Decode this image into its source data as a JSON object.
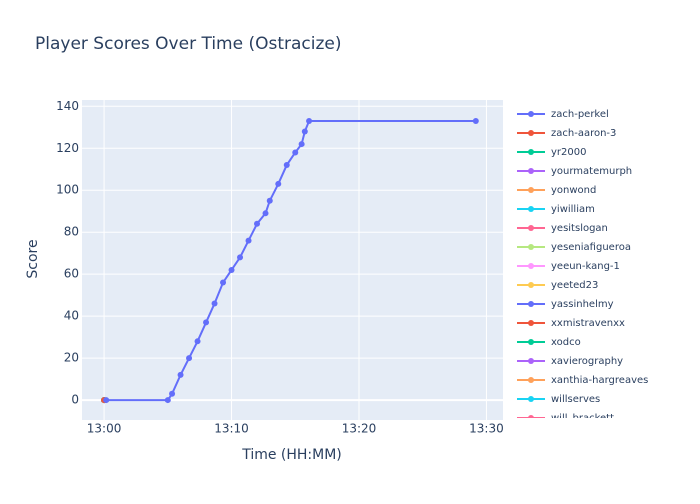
{
  "chart_data": {
    "type": "line",
    "title": "Player Scores Over Time (Ostracize)",
    "x_label": "Time (HH:MM)",
    "y_label": "Score",
    "xlim": [
      "12:58:16",
      "13:31:18"
    ],
    "xticks": [
      "13:00",
      "13:10",
      "13:20",
      "13:30"
    ],
    "ylim": [
      -9.5,
      143
    ],
    "yticks": [
      0,
      20,
      40,
      60,
      80,
      100,
      120,
      140
    ],
    "grid": true,
    "legend": "right",
    "series": [
      {
        "name": "zach-perkel",
        "color": "#636efa",
        "x": [
          "13:00:10",
          "13:05:00",
          "13:05:20",
          "13:06:00",
          "13:06:40",
          "13:07:20",
          "13:08:00",
          "13:08:40",
          "13:09:20",
          "13:10:00",
          "13:10:40",
          "13:11:20",
          "13:12:00",
          "13:12:40",
          "13:13:00",
          "13:13:40",
          "13:14:20",
          "13:15:00",
          "13:15:30",
          "13:15:45",
          "13:16:05",
          "13:29:10"
        ],
        "values": [
          0,
          0,
          3,
          12,
          20,
          28,
          37,
          46,
          56,
          62,
          68,
          76,
          84,
          89,
          95,
          103,
          112,
          118,
          122,
          128,
          133,
          133
        ]
      },
      {
        "name": "zach-aaron-3",
        "color": "#EF553B",
        "x": [
          "13:00:00"
        ],
        "values": [
          0
        ]
      },
      {
        "name": "yr2000",
        "color": "#00cc96",
        "x": [
          "13:00:00"
        ],
        "values": [
          0
        ]
      },
      {
        "name": "yourmatemurph",
        "color": "#ab63fa",
        "x": [
          "13:00:00"
        ],
        "values": [
          0
        ]
      },
      {
        "name": "yonwond",
        "color": "#FFA15A",
        "x": [
          "13:00:00"
        ],
        "values": [
          0
        ]
      },
      {
        "name": "yiwilliam",
        "color": "#19d3f3",
        "x": [
          "13:00:00"
        ],
        "values": [
          0
        ]
      },
      {
        "name": "yesitslogan",
        "color": "#FF6692",
        "x": [
          "13:00:00"
        ],
        "values": [
          0
        ]
      },
      {
        "name": "yeseniafigueroa",
        "color": "#B6E880",
        "x": [
          "13:00:00"
        ],
        "values": [
          0
        ]
      },
      {
        "name": "yeeun-kang-1",
        "color": "#FF97FF",
        "x": [
          "13:00:00"
        ],
        "values": [
          0
        ]
      },
      {
        "name": "yeeted23",
        "color": "#FECB52",
        "x": [
          "13:00:00"
        ],
        "values": [
          0
        ]
      },
      {
        "name": "yassinhelmy",
        "color": "#636efa",
        "x": [
          "13:00:00"
        ],
        "values": [
          0
        ]
      },
      {
        "name": "xxmistravenxx",
        "color": "#EF553B",
        "x": [
          "13:00:00"
        ],
        "values": [
          0
        ]
      },
      {
        "name": "xodco",
        "color": "#00cc96",
        "x": [
          "13:00:00"
        ],
        "values": [
          0
        ]
      },
      {
        "name": "xavierography",
        "color": "#ab63fa",
        "x": [
          "13:00:00"
        ],
        "values": [
          0
        ]
      },
      {
        "name": "xanthia-hargreaves",
        "color": "#FFA15A",
        "x": [
          "13:00:00"
        ],
        "values": [
          0
        ]
      },
      {
        "name": "willserves",
        "color": "#19d3f3",
        "x": [
          "13:00:00"
        ],
        "values": [
          0
        ]
      },
      {
        "name": "will_brackett",
        "color": "#FF6692",
        "x": [
          "13:00:00"
        ],
        "values": [
          0
        ]
      }
    ]
  }
}
